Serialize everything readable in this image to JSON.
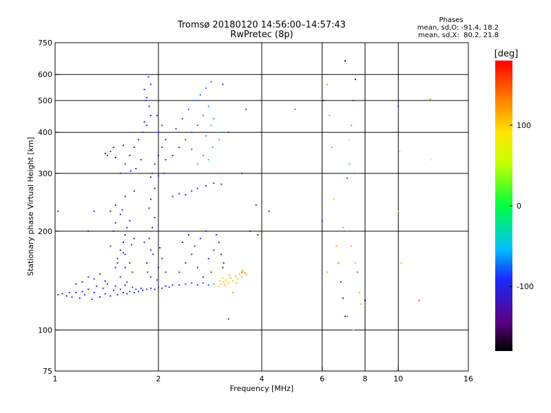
{
  "chart_data": {
    "type": "scatter",
    "title": "Tromsø 20180120 14:56:00–14:57:43",
    "subtitle": "RwPretec (8p)",
    "xlabel": "Frequency [MHz]",
    "ylabel": "Stationary phase Virtual Height [km]",
    "xscale": "log",
    "yscale": "log",
    "xlim": [
      1,
      16
    ],
    "ylim": [
      75,
      750
    ],
    "x_ticks": [
      1,
      2,
      4,
      6,
      8,
      10,
      16
    ],
    "y_ticks": [
      75,
      100,
      200,
      300,
      400,
      500,
      600,
      750
    ],
    "grid_x": [
      2,
      4,
      6,
      8,
      10
    ],
    "grid_y": [
      100,
      200,
      300,
      400,
      500,
      600
    ],
    "legend": {
      "title": "Phases",
      "lines": [
        "mean, sd,O: -91.4, 18.2",
        "mean, sd,X:  80.2, 21.8"
      ]
    },
    "colorbar": {
      "label": "[deg]",
      "range": [
        -180,
        180
      ],
      "ticks": [
        100,
        0,
        -100
      ]
    },
    "points": [
      [
        1.02,
        128,
        -100
      ],
      [
        1.05,
        129,
        -100
      ],
      [
        1.08,
        127,
        -102
      ],
      [
        1.1,
        130,
        -98
      ],
      [
        1.12,
        126,
        -105
      ],
      [
        1.15,
        130,
        -100
      ],
      [
        1.18,
        125,
        -103
      ],
      [
        1.2,
        131,
        -97
      ],
      [
        1.22,
        128,
        -100
      ],
      [
        1.25,
        133,
        -98
      ],
      [
        1.28,
        124,
        -105
      ],
      [
        1.3,
        130,
        -100
      ],
      [
        1.32,
        136,
        -95
      ],
      [
        1.35,
        126,
        -103
      ],
      [
        1.38,
        134,
        -100
      ],
      [
        1.4,
        129,
        -100
      ],
      [
        1.42,
        138,
        -97
      ],
      [
        1.45,
        127,
        -104
      ],
      [
        1.48,
        132,
        -100
      ],
      [
        1.5,
        136,
        -98
      ],
      [
        1.52,
        128,
        -103
      ],
      [
        1.55,
        133,
        -100
      ],
      [
        1.58,
        130,
        -100
      ],
      [
        1.6,
        137,
        -98
      ],
      [
        1.62,
        129,
        -102
      ],
      [
        1.65,
        131,
        -100
      ],
      [
        1.68,
        135,
        -97
      ],
      [
        1.7,
        130,
        -100
      ],
      [
        1.72,
        133,
        -100
      ],
      [
        1.75,
        131,
        -102
      ],
      [
        1.78,
        134,
        -98
      ],
      [
        1.8,
        132,
        -100
      ],
      [
        1.85,
        133,
        -100
      ],
      [
        1.9,
        134,
        -98
      ],
      [
        1.95,
        133,
        -100
      ],
      [
        2.0,
        135,
        -100
      ],
      [
        2.05,
        134,
        -98
      ],
      [
        2.1,
        136,
        -100
      ],
      [
        2.15,
        135,
        -95
      ],
      [
        2.2,
        137,
        -95
      ],
      [
        2.3,
        137,
        -93
      ],
      [
        2.4,
        138,
        -90
      ],
      [
        2.5,
        139,
        -88
      ],
      [
        2.6,
        137,
        -85
      ],
      [
        2.7,
        139,
        -80
      ],
      [
        2.8,
        137,
        -75
      ],
      [
        2.9,
        138,
        -30
      ],
      [
        1.2,
        140,
        -100
      ],
      [
        1.25,
        145,
        -100
      ],
      [
        1.3,
        143,
        -105
      ],
      [
        1.35,
        148,
        -100
      ],
      [
        1.4,
        141,
        -95
      ],
      [
        1.15,
        138,
        -100
      ],
      [
        3.0,
        136,
        105
      ],
      [
        3.05,
        138,
        108
      ],
      [
        3.1,
        140,
        110
      ],
      [
        3.15,
        142,
        112
      ],
      [
        3.2,
        139,
        108
      ],
      [
        3.25,
        144,
        110
      ],
      [
        3.3,
        141,
        105
      ],
      [
        3.35,
        146,
        112
      ],
      [
        3.4,
        143,
        108
      ],
      [
        3.45,
        148,
        110
      ],
      [
        3.5,
        145,
        115
      ],
      [
        3.55,
        150,
        110
      ],
      [
        3.6,
        147,
        112
      ],
      [
        3.02,
        141,
        100
      ],
      [
        3.12,
        137,
        108
      ],
      [
        3.22,
        147,
        110
      ],
      [
        3.38,
        139,
        112
      ],
      [
        3.52,
        152,
        108
      ],
      [
        3.58,
        149,
        115
      ],
      [
        3.08,
        144,
        105
      ],
      [
        1.5,
        155,
        -100
      ],
      [
        1.52,
        165,
        -110
      ],
      [
        1.55,
        175,
        -105
      ],
      [
        1.58,
        185,
        -100
      ],
      [
        1.6,
        195,
        -115
      ],
      [
        1.62,
        205,
        -100
      ],
      [
        1.5,
        212,
        -105
      ],
      [
        1.55,
        225,
        -110
      ],
      [
        1.6,
        170,
        -100
      ],
      [
        1.65,
        160,
        -105
      ],
      [
        1.68,
        150,
        -100
      ],
      [
        1.7,
        190,
        -115
      ],
      [
        1.45,
        180,
        -100
      ],
      [
        1.48,
        200,
        -110
      ],
      [
        1.55,
        145,
        -100
      ],
      [
        1.6,
        155,
        -105
      ],
      [
        1.65,
        215,
        -100
      ],
      [
        1.62,
        140,
        -100
      ],
      [
        1.52,
        160,
        -95
      ],
      [
        1.58,
        172,
        -100
      ],
      [
        1.67,
        182,
        -105
      ],
      [
        1.57,
        232,
        -100
      ],
      [
        1.85,
        160,
        -115
      ],
      [
        1.9,
        175,
        -100
      ],
      [
        1.88,
        190,
        -105
      ],
      [
        1.92,
        205,
        -110
      ],
      [
        1.95,
        220,
        -100
      ],
      [
        1.86,
        150,
        -105
      ],
      [
        1.9,
        145,
        -100
      ],
      [
        2.0,
        155,
        -110
      ],
      [
        2.05,
        165,
        -100
      ],
      [
        2.1,
        150,
        -105
      ],
      [
        1.82,
        185,
        -100
      ],
      [
        1.93,
        170,
        -115
      ],
      [
        1.98,
        142,
        -100
      ],
      [
        2.02,
        178,
        -105
      ],
      [
        1.88,
        235,
        -110
      ],
      [
        1.9,
        250,
        -100
      ],
      [
        2.3,
        150,
        -100
      ],
      [
        2.4,
        160,
        -105
      ],
      [
        2.5,
        170,
        -110
      ],
      [
        2.6,
        155,
        -100
      ],
      [
        2.7,
        145,
        -115
      ],
      [
        2.8,
        165,
        -105
      ],
      [
        2.9,
        175,
        -120
      ],
      [
        3.0,
        185,
        -125
      ],
      [
        3.05,
        170,
        -130
      ],
      [
        3.1,
        160,
        -125
      ],
      [
        3.08,
        155,
        -115
      ],
      [
        2.85,
        150,
        -110
      ],
      [
        2.55,
        180,
        -110
      ],
      [
        2.65,
        190,
        -115
      ],
      [
        2.95,
        195,
        -120
      ],
      [
        2.75,
        200,
        -110
      ],
      [
        2.35,
        185,
        -105
      ],
      [
        2.45,
        195,
        -100
      ],
      [
        1.55,
        300,
        -100
      ],
      [
        1.6,
        320,
        -110
      ],
      [
        1.65,
        340,
        -100
      ],
      [
        1.7,
        360,
        -115
      ],
      [
        1.75,
        380,
        -100
      ],
      [
        1.8,
        400,
        -110
      ],
      [
        1.85,
        420,
        -100
      ],
      [
        1.9,
        450,
        -105
      ],
      [
        1.88,
        480,
        -110
      ],
      [
        1.85,
        510,
        -100
      ],
      [
        1.82,
        540,
        -95
      ],
      [
        1.87,
        590,
        -90
      ],
      [
        1.78,
        330,
        -105
      ],
      [
        1.72,
        310,
        -100
      ],
      [
        1.66,
        305,
        -110
      ],
      [
        1.92,
        300,
        -110
      ],
      [
        1.95,
        320,
        -100
      ],
      [
        2.0,
        340,
        -105
      ],
      [
        2.05,
        360,
        -100
      ],
      [
        2.1,
        380,
        -95
      ],
      [
        2.0,
        400,
        -90
      ],
      [
        2.05,
        420,
        -85
      ],
      [
        1.98,
        450,
        -88
      ],
      [
        2.08,
        300,
        -95
      ],
      [
        2.0,
        295,
        -100
      ],
      [
        1.9,
        292,
        -110
      ],
      [
        2.1,
        330,
        -90
      ],
      [
        1.82,
        430,
        -105
      ],
      [
        1.9,
        560,
        -100
      ],
      [
        1.84,
        500,
        -110
      ],
      [
        2.2,
        340,
        -95
      ],
      [
        2.3,
        360,
        -90
      ],
      [
        2.4,
        380,
        -85
      ],
      [
        2.5,
        400,
        -80
      ],
      [
        2.6,
        420,
        -75
      ],
      [
        2.7,
        450,
        -70
      ],
      [
        2.8,
        480,
        -65
      ],
      [
        2.65,
        520,
        -70
      ],
      [
        2.75,
        545,
        -72
      ],
      [
        2.85,
        570,
        -65
      ],
      [
        2.55,
        500,
        -68
      ],
      [
        2.45,
        470,
        -75
      ],
      [
        2.35,
        440,
        -80
      ],
      [
        2.25,
        410,
        -85
      ],
      [
        2.9,
        440,
        -60
      ],
      [
        2.95,
        400,
        -50
      ],
      [
        3.0,
        380,
        -40
      ],
      [
        2.88,
        360,
        -45
      ],
      [
        2.7,
        340,
        -50
      ],
      [
        2.6,
        320,
        -55
      ],
      [
        2.8,
        330,
        -50
      ],
      [
        2.5,
        355,
        -70
      ],
      [
        2.75,
        390,
        -60
      ],
      [
        2.85,
        420,
        -55
      ],
      [
        1.4,
        345,
        -100
      ],
      [
        1.45,
        350,
        -110
      ],
      [
        1.5,
        335,
        -100
      ],
      [
        1.48,
        360,
        -105
      ],
      [
        1.42,
        340,
        -100
      ],
      [
        1.58,
        365,
        -100
      ],
      [
        2.2,
        255,
        -110
      ],
      [
        2.3,
        260,
        -100
      ],
      [
        2.5,
        265,
        -110
      ],
      [
        2.6,
        270,
        -100
      ],
      [
        2.75,
        275,
        -110
      ],
      [
        2.9,
        280,
        -105
      ],
      [
        3.05,
        278,
        -100
      ],
      [
        2.4,
        258,
        -105
      ],
      [
        1.6,
        255,
        -100
      ],
      [
        1.7,
        265,
        -110
      ],
      [
        1.5,
        240,
        -105
      ],
      [
        1.45,
        230,
        -100
      ],
      [
        1.3,
        230,
        -100
      ],
      [
        1.25,
        200,
        -105
      ],
      [
        1.02,
        230,
        -100
      ],
      [
        1.95,
        270,
        -110
      ],
      [
        3.08,
        560,
        -110
      ],
      [
        3.2,
        400,
        -115
      ],
      [
        3.5,
        300,
        -100
      ],
      [
        3.6,
        470,
        -105
      ],
      [
        3.85,
        240,
        -120
      ],
      [
        4.2,
        230,
        -100
      ],
      [
        3.9,
        195,
        -130
      ],
      [
        3.7,
        200,
        -140
      ],
      [
        5.0,
        470,
        150
      ],
      [
        5.5,
        300,
        150
      ],
      [
        6.0,
        215,
        -100
      ],
      [
        6.05,
        500,
        -100
      ],
      [
        6.2,
        560,
        130
      ],
      [
        6.3,
        450,
        120
      ],
      [
        6.4,
        360,
        130
      ],
      [
        6.5,
        250,
        100
      ],
      [
        6.6,
        180,
        120
      ],
      [
        6.7,
        160,
        140
      ],
      [
        6.8,
        140,
        -100
      ],
      [
        6.9,
        125,
        -120
      ],
      [
        7.0,
        110,
        -120
      ],
      [
        7.1,
        200,
        -30
      ],
      [
        7.2,
        320,
        -10
      ],
      [
        7.3,
        420,
        -20
      ],
      [
        7.4,
        500,
        -100
      ],
      [
        7.5,
        580,
        -150
      ],
      [
        7.0,
        660,
        -200
      ],
      [
        7.6,
        150,
        160
      ],
      [
        7.7,
        130,
        120
      ],
      [
        7.1,
        290,
        -100
      ],
      [
        7.3,
        180,
        120
      ],
      [
        7.4,
        100,
        50
      ],
      [
        7.5,
        160,
        110
      ],
      [
        7.6,
        300,
        -30
      ],
      [
        7.8,
        120,
        120
      ],
      [
        8.0,
        123,
        -200
      ],
      [
        6.2,
        150,
        120
      ],
      [
        7.1,
        110,
        150
      ],
      [
        7.2,
        380,
        80
      ],
      [
        6.9,
        205,
        120
      ],
      [
        10.0,
        480,
        -110
      ],
      [
        10.1,
        350,
        60
      ],
      [
        10.0,
        230,
        110
      ],
      [
        11.5,
        123,
        160
      ],
      [
        12.4,
        505,
        120
      ],
      [
        12.5,
        330,
        80
      ],
      [
        10.2,
        160,
        110
      ],
      [
        3.2,
        108,
        -100
      ],
      [
        3.5,
        150,
        160
      ],
      [
        3.3,
        130,
        130
      ]
    ]
  }
}
